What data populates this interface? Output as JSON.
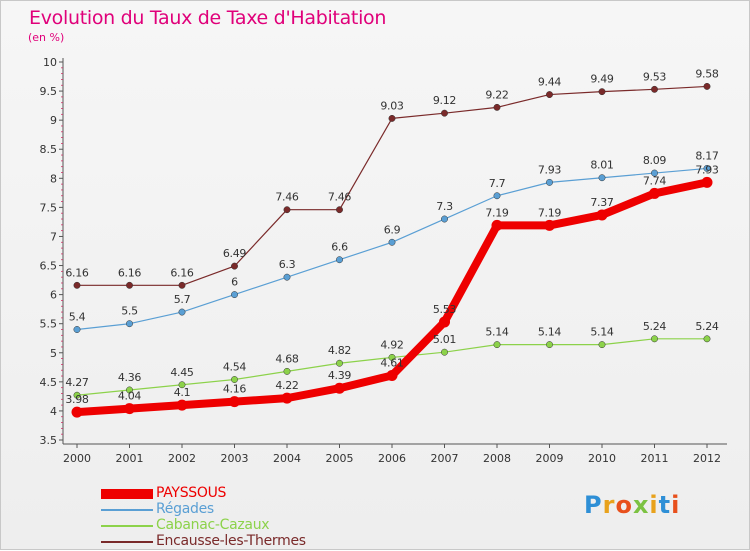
{
  "title": "Evolution du Taux de Taxe d'Habitation",
  "subtitle": "(en %)",
  "logo": {
    "letters": [
      {
        "ch": "P",
        "color": "#2e8fd6"
      },
      {
        "ch": "r",
        "color": "#e8a21c"
      },
      {
        "ch": "o",
        "color": "#e8501c"
      },
      {
        "ch": "x",
        "color": "#7cc242"
      },
      {
        "ch": "i",
        "color": "#e8a21c"
      },
      {
        "ch": "t",
        "color": "#2e8fd6"
      },
      {
        "ch": "i",
        "color": "#e8501c"
      }
    ]
  },
  "chart_data": {
    "type": "line",
    "x": [
      "2000",
      "2001",
      "2002",
      "2003",
      "2004",
      "2005",
      "2006",
      "2007",
      "2008",
      "2009",
      "2010",
      "2011",
      "2012"
    ],
    "yticks": [
      "3.5",
      "4",
      "4.5",
      "5",
      "5.5",
      "6",
      "6.5",
      "7",
      "7.5",
      "8",
      "8.5",
      "9",
      "9.5",
      "10"
    ],
    "ylim": [
      3.5,
      10
    ],
    "grid": false,
    "legend_position": "bottom-left",
    "series": [
      {
        "name": "Encausse-les-Thermes",
        "color": "#7a2a2a",
        "values": [
          6.16,
          6.16,
          6.16,
          6.49,
          7.46,
          7.46,
          9.03,
          9.12,
          9.22,
          9.44,
          9.49,
          9.53,
          9.58
        ],
        "labels": [
          "6.16",
          "6.16",
          "6.16",
          "6.49",
          "7.46",
          "7.46",
          "9.03",
          "9.12",
          "9.22",
          "9.44",
          "9.49",
          "9.53",
          "9.58"
        ]
      },
      {
        "name": "Régades",
        "color": "#5a9fd4",
        "values": [
          5.4,
          5.5,
          5.7,
          6,
          6.3,
          6.6,
          6.9,
          7.3,
          7.7,
          7.93,
          8.01,
          8.09,
          8.17
        ],
        "labels": [
          "5.4",
          "5.5",
          "5.7",
          "6",
          "6.3",
          "6.6",
          "6.9",
          "7.3",
          "7.7",
          "7.93",
          "8.01",
          "8.09",
          "8.17"
        ]
      },
      {
        "name": "Cabanac-Cazaux",
        "color": "#8cd24a",
        "values": [
          4.27,
          4.36,
          4.45,
          4.54,
          4.68,
          4.82,
          4.92,
          5.01,
          5.14,
          5.14,
          5.14,
          5.24,
          5.24
        ],
        "labels": [
          "4.27",
          "4.36",
          "4.45",
          "4.54",
          "4.68",
          "4.82",
          "4.92",
          "5.01",
          "5.14",
          "5.14",
          "5.14",
          "5.24",
          "5.24"
        ]
      },
      {
        "name": "PAYSSOUS",
        "color": "#ee0000",
        "values": [
          3.98,
          4.04,
          4.1,
          4.16,
          4.22,
          4.39,
          4.61,
          5.53,
          7.19,
          7.19,
          7.37,
          7.74,
          7.93
        ],
        "labels": [
          "3.98",
          "4.04",
          "4.1",
          "4.16",
          "4.22",
          "4.39",
          "4.61",
          "5.53",
          "7.19",
          "7.19",
          "7.37",
          "7.74",
          "7.93"
        ]
      }
    ],
    "legend": [
      {
        "name": "PAYSSOUS",
        "color": "#ee0000"
      },
      {
        "name": "Régades",
        "color": "#5a9fd4"
      },
      {
        "name": "Cabanac-Cazaux",
        "color": "#8cd24a"
      },
      {
        "name": "Encausse-les-Thermes",
        "color": "#7a2a2a"
      }
    ]
  }
}
